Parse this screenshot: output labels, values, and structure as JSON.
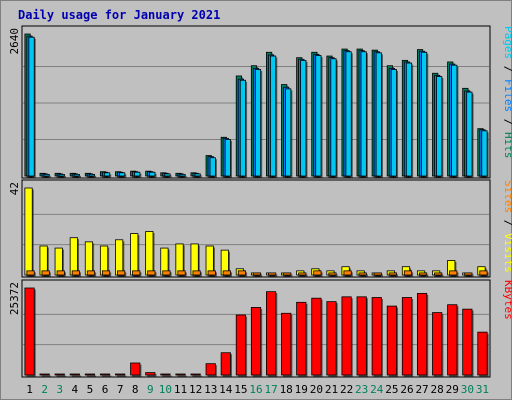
{
  "chart_data": {
    "type": "bar",
    "title": "Daily usage for January 2021",
    "colors": {
      "pages": "#00c8f0",
      "files": "#0080ff",
      "hits": "#00805a",
      "visits": "#ffff00",
      "sites": "#ff8000",
      "kbytes": "#ff0000",
      "plot_bg": "#c0c0c0",
      "weekend_label": "#00805a",
      "weekday_label": "#000000"
    },
    "x": [
      "1",
      "2",
      "3",
      "4",
      "5",
      "6",
      "7",
      "8",
      "9",
      "10",
      "11",
      "12",
      "13",
      "14",
      "15",
      "16",
      "17",
      "18",
      "19",
      "20",
      "21",
      "22",
      "23",
      "24",
      "25",
      "26",
      "27",
      "28",
      "29",
      "30",
      "31"
    ],
    "weekend_days": [
      "2",
      "3",
      "9",
      "10",
      "16",
      "17",
      "23",
      "24",
      "30",
      "31"
    ],
    "panels": [
      {
        "id": "hits_panel",
        "ymax_label": "2640",
        "ymax": 2640,
        "label_parts": [
          {
            "text": "Pages",
            "color": "#00c8f0"
          },
          {
            "text": " / ",
            "color": "#000000"
          },
          {
            "text": "Files",
            "color": "#0080ff"
          },
          {
            "text": " / ",
            "color": "#000000"
          },
          {
            "text": "Hits",
            "color": "#00805a"
          }
        ],
        "series": [
          {
            "name": "Hits",
            "color": "#00805a",
            "values": [
              2640,
              50,
              50,
              50,
              50,
              80,
              80,
              90,
              90,
              60,
              50,
              60,
              380,
              720,
              1860,
              2050,
              2300,
              1700,
              2200,
              2300,
              2230,
              2360,
              2360,
              2340,
              2050,
              2150,
              2350,
              1910,
              2120,
              1630,
              880
            ]
          },
          {
            "name": "Files",
            "color": "#0080ff",
            "values": [
              2600,
              40,
              40,
              40,
              40,
              70,
              70,
              80,
              80,
              50,
              40,
              50,
              360,
              700,
              1800,
              2000,
              2250,
              1650,
              2170,
              2260,
              2200,
              2330,
              2330,
              2310,
              2000,
              2120,
              2320,
              1870,
              2080,
              1580,
              860
            ]
          },
          {
            "name": "Pages",
            "color": "#00c8f0",
            "values": [
              2580,
              30,
              30,
              30,
              30,
              60,
              60,
              70,
              70,
              40,
              30,
              40,
              340,
              680,
              1780,
              1980,
              2230,
              1620,
              2150,
              2240,
              2180,
              2310,
              2310,
              2290,
              1980,
              2100,
              2300,
              1850,
              2060,
              1560,
              840
            ]
          }
        ]
      },
      {
        "id": "visits_panel",
        "ymax_label": "42",
        "ymax": 42,
        "label_parts": [
          {
            "text": "Sites",
            "color": "#ff8000"
          },
          {
            "text": " / ",
            "color": "#000000"
          },
          {
            "text": "Visits",
            "color": "#ffff00"
          }
        ],
        "series": [
          {
            "name": "Visits",
            "color": "#ffff00",
            "values": [
              42,
              14,
              13,
              18,
              16,
              14,
              17,
              20,
              21,
              13,
              15,
              15,
              14,
              12,
              3,
              1,
              1,
              1,
              2,
              3,
              2,
              4,
              2,
              1,
              2,
              4,
              2,
              2,
              7,
              1,
              4
            ]
          },
          {
            "name": "Sites",
            "color": "#ff8000",
            "values": [
              2,
              2,
              2,
              2,
              2,
              2,
              2,
              2,
              2,
              2,
              2,
              2,
              2,
              2,
              2,
              1,
              1,
              1,
              1,
              2,
              1,
              2,
              1,
              1,
              1,
              2,
              1,
              1,
              2,
              1,
              2
            ]
          }
        ]
      },
      {
        "id": "kbytes_panel",
        "ymax_label": "25372",
        "ymax": 25372,
        "label_parts": [
          {
            "text": "KBytes",
            "color": "#ff0000"
          }
        ],
        "series": [
          {
            "name": "KBytes",
            "color": "#ff0000",
            "values": [
              25372,
              100,
              100,
              100,
              100,
              100,
              100,
              3500,
              700,
              100,
              100,
              100,
              3300,
              6500,
              17500,
              19700,
              24300,
              18000,
              21200,
              22400,
              21400,
              22800,
              22800,
              22600,
              20100,
              22600,
              23800,
              18200,
              20500,
              19200,
              12500
            ]
          }
        ]
      }
    ]
  }
}
